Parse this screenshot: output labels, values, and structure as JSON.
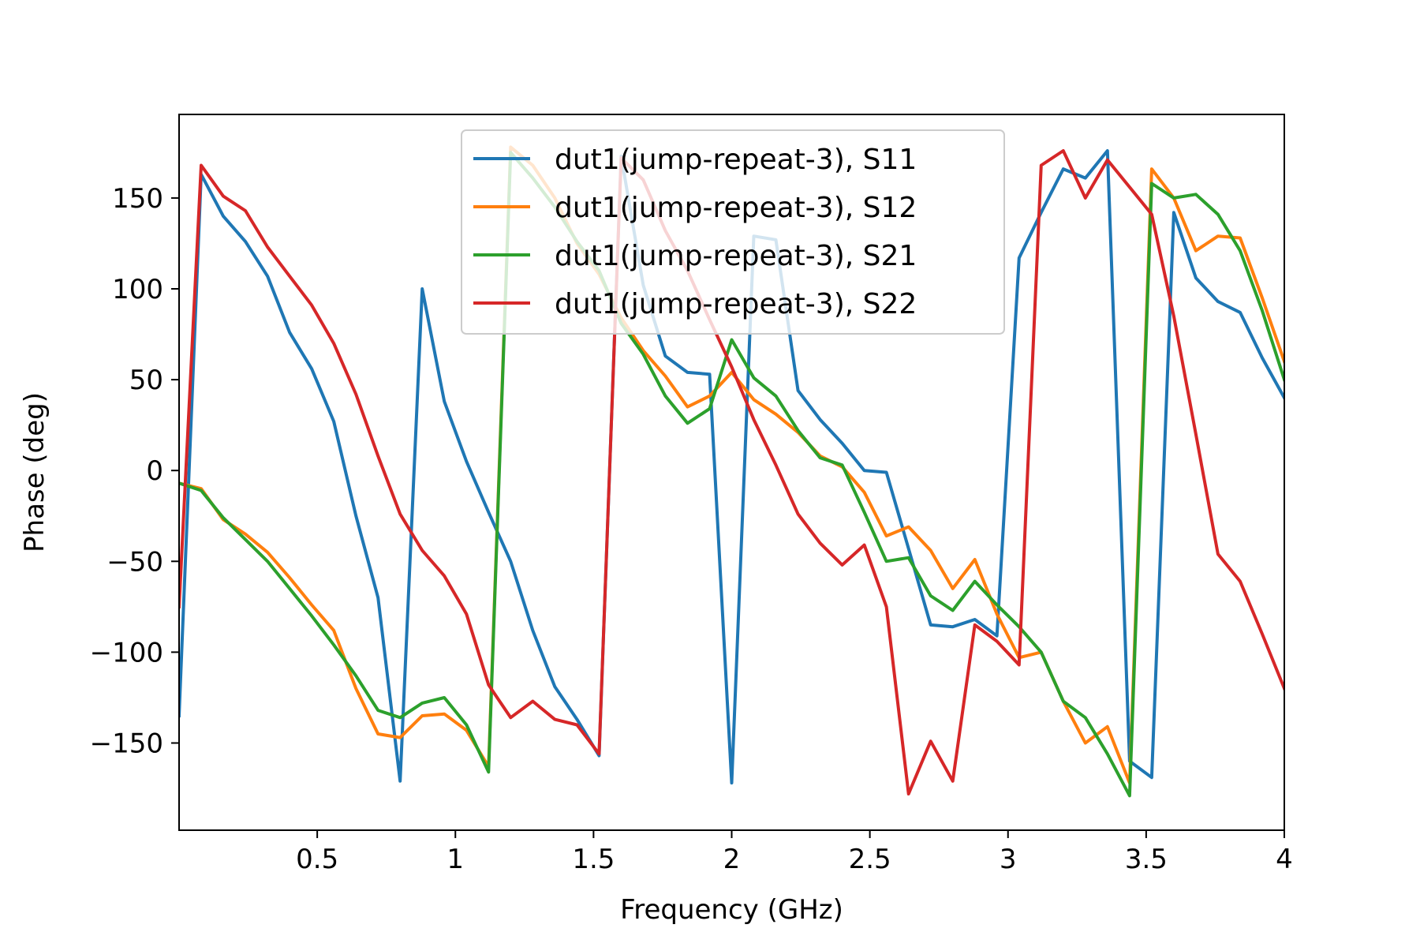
{
  "chart_data": {
    "type": "line",
    "title": "",
    "xlabel": "Frequency (GHz)",
    "ylabel": "Phase (deg)",
    "xlim": [
      0.0,
      4.0
    ],
    "ylim": [
      -198,
      196
    ],
    "xticks": [
      {
        "value": 0.5,
        "label": "0.5"
      },
      {
        "value": 1.0,
        "label": "1"
      },
      {
        "value": 1.5,
        "label": "1.5"
      },
      {
        "value": 2.0,
        "label": "2"
      },
      {
        "value": 2.5,
        "label": "2.5"
      },
      {
        "value": 3.0,
        "label": "3"
      },
      {
        "value": 3.5,
        "label": "3.5"
      },
      {
        "value": 4.0,
        "label": "4"
      }
    ],
    "yticks": [
      {
        "value": 150,
        "label": "150"
      },
      {
        "value": 100,
        "label": "100"
      },
      {
        "value": 50,
        "label": "50"
      },
      {
        "value": 0,
        "label": "0"
      },
      {
        "value": -50,
        "label": "−50"
      },
      {
        "value": -100,
        "label": "−100"
      },
      {
        "value": -150,
        "label": "−150"
      }
    ],
    "grid": false,
    "legend_position": "top-center",
    "x": [
      0.0,
      0.08,
      0.16,
      0.24,
      0.32,
      0.4,
      0.48,
      0.56,
      0.64,
      0.72,
      0.8,
      0.88,
      0.96,
      1.04,
      1.12,
      1.2,
      1.28,
      1.36,
      1.44,
      1.52,
      1.6,
      1.68,
      1.76,
      1.84,
      1.92,
      2.0,
      2.08,
      2.16,
      2.24,
      2.32,
      2.4,
      2.48,
      2.56,
      2.64,
      2.72,
      2.8,
      2.88,
      2.96,
      3.04,
      3.12,
      3.2,
      3.28,
      3.36,
      3.44,
      3.52,
      3.6,
      3.68,
      3.76,
      3.84,
      3.92,
      4.0
    ],
    "series": [
      {
        "name": "dut1(jump-repeat-3), S11",
        "color": "#1f77b4",
        "values": [
          -135,
          163,
          140,
          126,
          107,
          76,
          56,
          27,
          -25,
          -70,
          -171,
          100,
          38,
          5,
          -23,
          -50,
          -88,
          -119,
          -137,
          -157,
          173,
          102,
          63,
          54,
          53,
          -172,
          129,
          127,
          44,
          28,
          15,
          0,
          -1,
          -43,
          -85,
          -86,
          -82,
          -91,
          117,
          142,
          166,
          161,
          176,
          -160,
          -169,
          142,
          106,
          93,
          87,
          62,
          40
        ]
      },
      {
        "name": "dut1(jump-repeat-3), S12",
        "color": "#ff7f0e",
        "values": [
          -7,
          -10,
          -27,
          -35,
          -45,
          -59,
          -74,
          -88,
          -120,
          -145,
          -147,
          -135,
          -134,
          -143,
          -163,
          178,
          168,
          150,
          125,
          108,
          84,
          66,
          52,
          35,
          41,
          54,
          39,
          31,
          21,
          8,
          2,
          -12,
          -36,
          -31,
          -44,
          -65,
          -49,
          -79,
          -103,
          -100,
          -127,
          -150,
          -141,
          -172,
          166,
          150,
          121,
          129,
          128,
          95,
          60
        ]
      },
      {
        "name": "dut1(jump-repeat-3), S21",
        "color": "#2ca02c",
        "values": [
          -7,
          -11,
          -26,
          -38,
          -50,
          -65,
          -80,
          -96,
          -113,
          -132,
          -136,
          -128,
          -125,
          -140,
          -166,
          175,
          161,
          145,
          126,
          110,
          81,
          64,
          41,
          26,
          34,
          72,
          51,
          41,
          22,
          7,
          3,
          -23,
          -50,
          -48,
          -69,
          -77,
          -61,
          -74,
          -86,
          -100,
          -127,
          -136,
          -156,
          -179,
          158,
          150,
          152,
          141,
          121,
          88,
          50
        ]
      },
      {
        "name": "dut1(jump-repeat-3), S22",
        "color": "#d62728",
        "values": [
          -75,
          168,
          151,
          143,
          123,
          107,
          91,
          70,
          42,
          8,
          -24,
          -44,
          -58,
          -79,
          -118,
          -136,
          -127,
          -137,
          -140,
          -156,
          172,
          160,
          132,
          110,
          83,
          57,
          28,
          3,
          -24,
          -40,
          -52,
          -41,
          -75,
          -178,
          -149,
          -171,
          -85,
          -94,
          -107,
          168,
          176,
          150,
          171,
          156,
          141,
          85,
          20,
          -46,
          -61,
          -90,
          -120
        ]
      }
    ]
  }
}
